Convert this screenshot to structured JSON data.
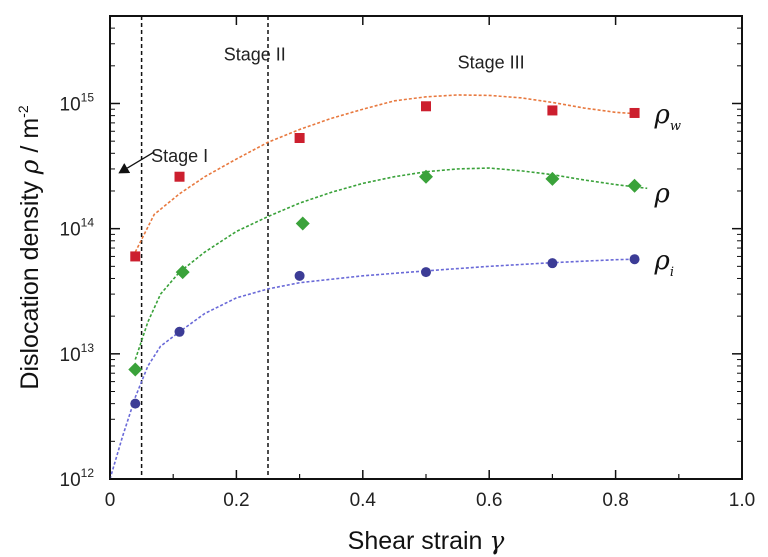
{
  "chart_data": {
    "type": "scatter",
    "xlabel_text": "Shear strain",
    "xlabel_symbol": "γ",
    "ylabel_text": "Dislocation density",
    "ylabel_symbol": "ρ",
    "ylabel_unit": "/ m",
    "ylabel_exp": "-2",
    "xlim": [
      0,
      1.0
    ],
    "ylim": [
      1000000000000.0,
      5000000000000000.0
    ],
    "yscale": "log",
    "grid": false,
    "x_ticks": [
      {
        "value": 0,
        "label": "0"
      },
      {
        "value": 0.2,
        "label": "0.2"
      },
      {
        "value": 0.4,
        "label": "0.4"
      },
      {
        "value": 0.6,
        "label": "0.6"
      },
      {
        "value": 0.8,
        "label": "0.8"
      },
      {
        "value": 1.0,
        "label": "1.0"
      }
    ],
    "y_ticks": [
      {
        "value": 1000000000000.0,
        "base": "10",
        "exp": "12"
      },
      {
        "value": 10000000000000.0,
        "base": "10",
        "exp": "13"
      },
      {
        "value": 100000000000000.0,
        "base": "10",
        "exp": "14"
      },
      {
        "value": 1000000000000000.0,
        "base": "10",
        "exp": "15"
      }
    ],
    "stage_lines": [
      0.05,
      0.25
    ],
    "stages": [
      {
        "label": "Stage I",
        "x": 0.065,
        "y": 340000000000000.0
      },
      {
        "label": "Stage II",
        "x": 0.18,
        "y": 2200000000000000.0
      },
      {
        "label": "Stage III",
        "x": 0.55,
        "y": 1900000000000000.0
      }
    ],
    "series": [
      {
        "name": "ρw",
        "symbol": "ρ",
        "subscript": "w",
        "color": "#cc1f2e",
        "line_color": "#e8793f",
        "marker": "square",
        "x": [
          0.04,
          0.11,
          0.3,
          0.5,
          0.7,
          0.83
        ],
        "y": [
          60000000000000.0,
          260000000000000.0,
          530000000000000.0,
          950000000000000.0,
          880000000000000.0,
          840000000000000.0
        ],
        "fit": [
          [
            0.04,
            65000000000000.0
          ],
          [
            0.07,
            130000000000000.0
          ],
          [
            0.11,
            190000000000000.0
          ],
          [
            0.15,
            260000000000000.0
          ],
          [
            0.2,
            360000000000000.0
          ],
          [
            0.25,
            490000000000000.0
          ],
          [
            0.3,
            620000000000000.0
          ],
          [
            0.35,
            760000000000000.0
          ],
          [
            0.4,
            900000000000000.0
          ],
          [
            0.45,
            1050000000000000.0
          ],
          [
            0.5,
            1130000000000000.0
          ],
          [
            0.55,
            1170000000000000.0
          ],
          [
            0.6,
            1160000000000000.0
          ],
          [
            0.65,
            1110000000000000.0
          ],
          [
            0.7,
            1020000000000000.0
          ],
          [
            0.75,
            920000000000000.0
          ],
          [
            0.8,
            850000000000000.0
          ],
          [
            0.83,
            830000000000000.0
          ]
        ]
      },
      {
        "name": "ρ",
        "symbol": "ρ",
        "subscript": "",
        "color": "#3aa23a",
        "line_color": "#3aa23a",
        "marker": "diamond",
        "x": [
          0.04,
          0.115,
          0.305,
          0.5,
          0.7,
          0.83
        ],
        "y": [
          7500000000000.0,
          45000000000000.0,
          110000000000000.0,
          260000000000000.0,
          250000000000000.0,
          220000000000000.0
        ],
        "fit": [
          [
            0.04,
            9000000000000.0
          ],
          [
            0.06,
            18000000000000.0
          ],
          [
            0.08,
            30000000000000.0
          ],
          [
            0.11,
            45000000000000.0
          ],
          [
            0.15,
            65000000000000.0
          ],
          [
            0.2,
            95000000000000.0
          ],
          [
            0.25,
            125000000000000.0
          ],
          [
            0.3,
            160000000000000.0
          ],
          [
            0.35,
            195000000000000.0
          ],
          [
            0.4,
            230000000000000.0
          ],
          [
            0.45,
            260000000000000.0
          ],
          [
            0.5,
            285000000000000.0
          ],
          [
            0.55,
            300000000000000.0
          ],
          [
            0.6,
            305000000000000.0
          ],
          [
            0.65,
            290000000000000.0
          ],
          [
            0.7,
            270000000000000.0
          ],
          [
            0.75,
            245000000000000.0
          ],
          [
            0.8,
            225000000000000.0
          ],
          [
            0.85,
            210000000000000.0
          ]
        ]
      },
      {
        "name": "ρi",
        "symbol": "ρ",
        "subscript": "i",
        "color": "#3c3c96",
        "line_color": "#6a6ad8",
        "marker": "circle",
        "x": [
          0.04,
          0.11,
          0.3,
          0.5,
          0.7,
          0.83
        ],
        "y": [
          4000000000000.0,
          15000000000000.0,
          42000000000000.0,
          45000000000000.0,
          53000000000000.0,
          57000000000000.0
        ],
        "fit": [
          [
            0.0,
            1000000000000.0
          ],
          [
            0.02,
            2200000000000.0
          ],
          [
            0.04,
            4500000000000.0
          ],
          [
            0.06,
            8000000000000.0
          ],
          [
            0.08,
            11500000000000.0
          ],
          [
            0.11,
            15000000000000.0
          ],
          [
            0.15,
            21000000000000.0
          ],
          [
            0.2,
            28000000000000.0
          ],
          [
            0.25,
            33000000000000.0
          ],
          [
            0.3,
            37000000000000.0
          ],
          [
            0.4,
            42000000000000.0
          ],
          [
            0.5,
            46000000000000.0
          ],
          [
            0.6,
            50000000000000.0
          ],
          [
            0.7,
            53500000000000.0
          ],
          [
            0.8,
            56500000000000.0
          ],
          [
            0.83,
            57000000000000.0
          ]
        ]
      }
    ],
    "arrow": {
      "from": [
        0.07,
        410000000000000.0
      ],
      "to": [
        0.015,
        280000000000000.0
      ]
    }
  }
}
